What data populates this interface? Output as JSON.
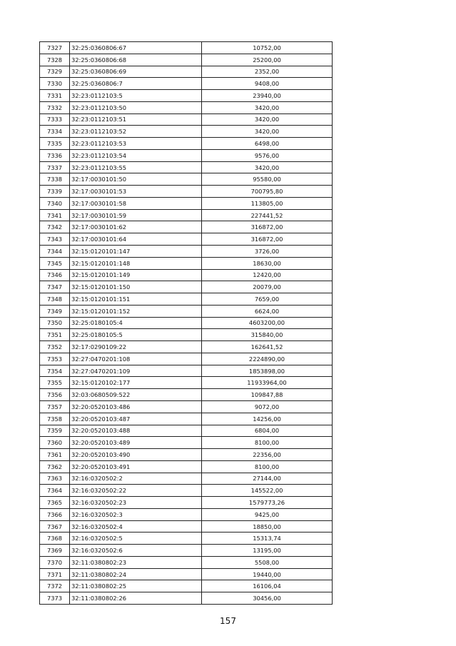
{
  "table": {
    "rows": [
      [
        "7327",
        "32:25:0360806:67",
        "10752,00"
      ],
      [
        "7328",
        "32:25:0360806:68",
        "25200,00"
      ],
      [
        "7329",
        "32:25:0360806:69",
        "2352,00"
      ],
      [
        "7330",
        "32:25:0360806:7",
        "9408,00"
      ],
      [
        "7331",
        "32:23:0112103:5",
        "23940,00"
      ],
      [
        "7332",
        "32:23:0112103:50",
        "3420,00"
      ],
      [
        "7333",
        "32:23:0112103:51",
        "3420,00"
      ],
      [
        "7334",
        "32:23:0112103:52",
        "3420,00"
      ],
      [
        "7335",
        "32:23:0112103:53",
        "6498,00"
      ],
      [
        "7336",
        "32:23:0112103:54",
        "9576,00"
      ],
      [
        "7337",
        "32:23:0112103:55",
        "3420,00"
      ],
      [
        "7338",
        "32:17:0030101:50",
        "95580,00"
      ],
      [
        "7339",
        "32:17:0030101:53",
        "700795,80"
      ],
      [
        "7340",
        "32:17:0030101:58",
        "113805,00"
      ],
      [
        "7341",
        "32:17:0030101:59",
        "227441,52"
      ],
      [
        "7342",
        "32:17:0030101:62",
        "316872,00"
      ],
      [
        "7343",
        "32:17:0030101:64",
        "316872,00"
      ],
      [
        "7344",
        "32:15:0120101:147",
        "3726,00"
      ],
      [
        "7345",
        "32:15:0120101:148",
        "18630,00"
      ],
      [
        "7346",
        "32:15:0120101:149",
        "12420,00"
      ],
      [
        "7347",
        "32:15:0120101:150",
        "20079,00"
      ],
      [
        "7348",
        "32:15:0120101:151",
        "7659,00"
      ],
      [
        "7349",
        "32:15:0120101:152",
        "6624,00"
      ],
      [
        "7350",
        "32:25:0180105:4",
        "4603200,00"
      ],
      [
        "7351",
        "32:25:0180105:5",
        "315840,00"
      ],
      [
        "7352",
        "32:17:0290109:22",
        "162641,52"
      ],
      [
        "7353",
        "32:27:0470201:108",
        "2224890,00"
      ],
      [
        "7354",
        "32:27:0470201:109",
        "1853898,00"
      ],
      [
        "7355",
        "32:15:0120102:177",
        "11933964,00"
      ],
      [
        "7356",
        "32:03:0680509:522",
        "109847,88"
      ],
      [
        "7357",
        "32:20:0520103:486",
        "9072,00"
      ],
      [
        "7358",
        "32:20:0520103:487",
        "14256,00"
      ],
      [
        "7359",
        "32:20:0520103:488",
        "6804,00"
      ],
      [
        "7360",
        "32:20:0520103:489",
        "8100,00"
      ],
      [
        "7361",
        "32:20:0520103:490",
        "22356,00"
      ],
      [
        "7362",
        "32:20:0520103:491",
        "8100,00"
      ],
      [
        "7363",
        "32:16:0320502:2",
        "27144,00"
      ],
      [
        "7364",
        "32:16:0320502:22",
        "145522,00"
      ],
      [
        "7365",
        "32:16:0320502:23",
        "1579773,26"
      ],
      [
        "7366",
        "32:16:0320502:3",
        "9425,00"
      ],
      [
        "7367",
        "32:16:0320502:4",
        "18850,00"
      ],
      [
        "7368",
        "32:16:0320502:5",
        "15313,74"
      ],
      [
        "7369",
        "32:16:0320502:6",
        "13195,00"
      ],
      [
        "7370",
        "32:11:0380802:23",
        "5508,00"
      ],
      [
        "7371",
        "32:11:0380802:24",
        "19440,00"
      ],
      [
        "7372",
        "32:11:0380802:25",
        "16106,04"
      ],
      [
        "7373",
        "32:11:0380802:26",
        "30456,00"
      ]
    ]
  },
  "footer": {
    "page_number": "157"
  }
}
